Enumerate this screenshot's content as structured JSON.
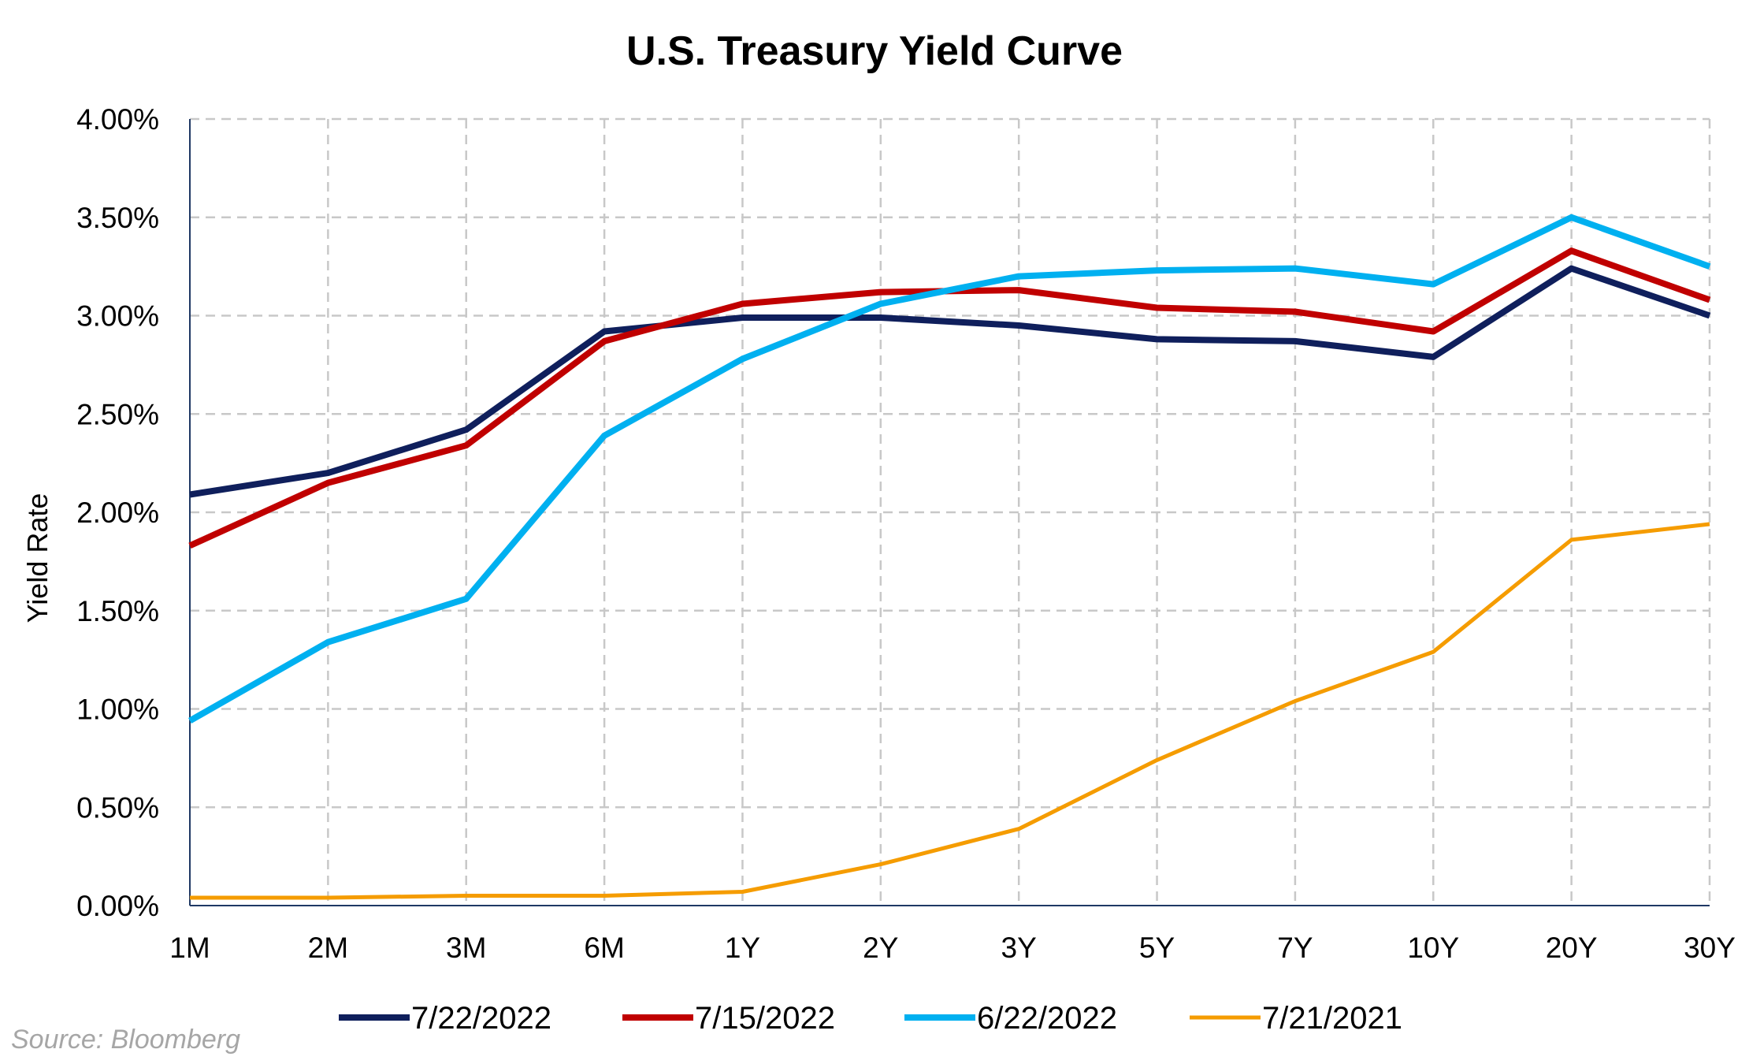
{
  "chart_data": {
    "type": "line",
    "title": "U.S. Treasury Yield Curve",
    "xlabel": "",
    "ylabel": "Yield Rate",
    "ylim": [
      0,
      4
    ],
    "y_ticks": [
      "0.00%",
      "0.50%",
      "1.00%",
      "1.50%",
      "2.00%",
      "2.50%",
      "3.00%",
      "3.50%",
      "4.00%"
    ],
    "y_tick_values": [
      0,
      0.5,
      1,
      1.5,
      2,
      2.5,
      3,
      3.5,
      4
    ],
    "categories": [
      "1M",
      "2M",
      "3M",
      "6M",
      "1Y",
      "2Y",
      "3Y",
      "5Y",
      "7Y",
      "10Y",
      "20Y",
      "30Y"
    ],
    "grid": true,
    "legend_position": "bottom",
    "series": [
      {
        "name": "7/22/2022",
        "color": "#0f1f5c",
        "values": [
          2.09,
          2.2,
          2.42,
          2.92,
          2.99,
          2.99,
          2.95,
          2.88,
          2.87,
          2.79,
          3.24,
          3.0
        ]
      },
      {
        "name": "7/15/2022",
        "color": "#c00000",
        "values": [
          1.83,
          2.15,
          2.34,
          2.87,
          3.06,
          3.12,
          3.13,
          3.04,
          3.02,
          2.92,
          3.33,
          3.08
        ]
      },
      {
        "name": "6/22/2022",
        "color": "#00b0f0",
        "values": [
          0.94,
          1.34,
          1.56,
          2.39,
          2.78,
          3.06,
          3.2,
          3.23,
          3.24,
          3.16,
          3.5,
          3.25
        ]
      },
      {
        "name": "7/21/2021",
        "color": "#f59c00",
        "values": [
          0.04,
          0.04,
          0.05,
          0.05,
          0.07,
          0.21,
          0.39,
          0.74,
          1.04,
          1.29,
          1.86,
          1.94
        ]
      }
    ]
  },
  "source": "Source: Bloomberg"
}
